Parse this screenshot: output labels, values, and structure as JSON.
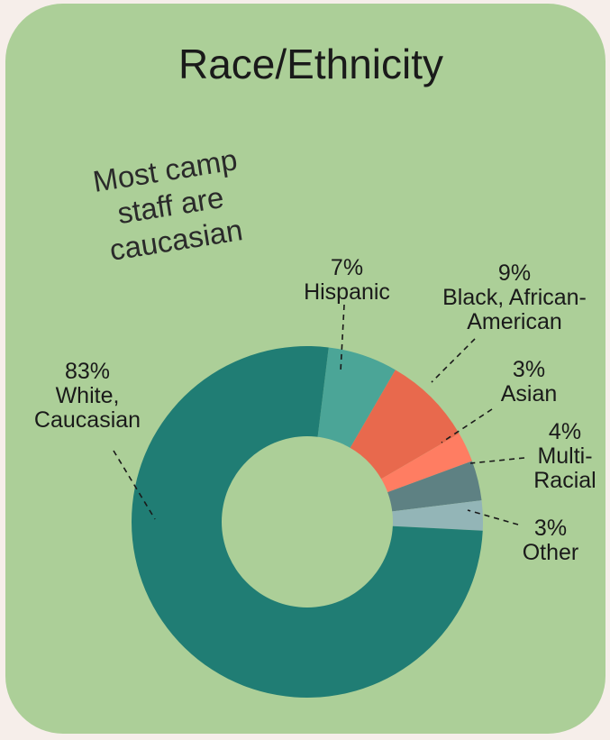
{
  "chart_data": {
    "type": "pie",
    "title": "Race/Ethnicity",
    "annotation": [
      "Most camp",
      "staff are",
      "caucasian"
    ],
    "slices": [
      {
        "label_lines": [
          "7%",
          "Hispanic"
        ],
        "value": 7,
        "color": "#4ba597"
      },
      {
        "label_lines": [
          "9%",
          "Black, African-",
          "American"
        ],
        "value": 9,
        "color": "#e8694d"
      },
      {
        "label_lines": [
          "3%",
          "Asian"
        ],
        "value": 3,
        "color": "#ff7d62"
      },
      {
        "label_lines": [
          "4%",
          "Multi-",
          "Racial"
        ],
        "value": 4,
        "color": "#5e8183"
      },
      {
        "label_lines": [
          "3%",
          "Other"
        ],
        "value": 3,
        "color": "#93b5b7"
      },
      {
        "label_lines": [
          "83%",
          "White,",
          "Caucasian"
        ],
        "value": 83,
        "color": "#207d74"
      }
    ],
    "start_angle_deg": 360,
    "direction": "clockwise",
    "donut": true
  },
  "colors": {
    "background": "#f6eeea",
    "card": "#accf98",
    "hole": "#accf98"
  }
}
